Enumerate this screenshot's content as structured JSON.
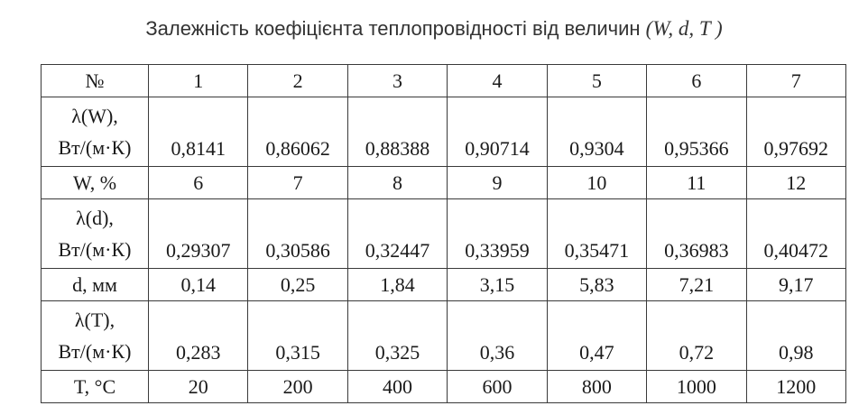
{
  "title": {
    "text": "Залежність коефіцієнта теплопровідності від величин",
    "vars": "(W, d, T )"
  },
  "table": {
    "header": {
      "label": "№",
      "cols": [
        "1",
        "2",
        "3",
        "4",
        "5",
        "6",
        "7"
      ]
    },
    "rows": [
      {
        "label_line1": "λ(W),",
        "label_line2": "Вт/(м·К)",
        "values": [
          "0,8141",
          "0,86062",
          "0,88388",
          "0,90714",
          "0,9304",
          "0,95366",
          "0,97692"
        ]
      },
      {
        "label": "W, %",
        "values": [
          "6",
          "7",
          "8",
          "9",
          "10",
          "11",
          "12"
        ]
      },
      {
        "label_line1": "λ(d),",
        "label_line2": "Вт/(м·К)",
        "values": [
          "0,29307",
          "0,30586",
          "0,32447",
          "0,33959",
          "0,35471",
          "0,36983",
          "0,40472"
        ]
      },
      {
        "label": "d, мм",
        "values": [
          "0,14",
          "0,25",
          "1,84",
          "3,15",
          "5,83",
          "7,21",
          "9,17"
        ]
      },
      {
        "label_line1": "λ(T),",
        "label_line2": "Вт/(м·К)",
        "values": [
          "0,283",
          "0,315",
          "0,325",
          "0,36",
          "0,47",
          "0,72",
          "0,98"
        ]
      },
      {
        "label": "T, °C",
        "values": [
          "20",
          "200",
          "400",
          "600",
          "800",
          "1000",
          "1200"
        ]
      }
    ]
  }
}
